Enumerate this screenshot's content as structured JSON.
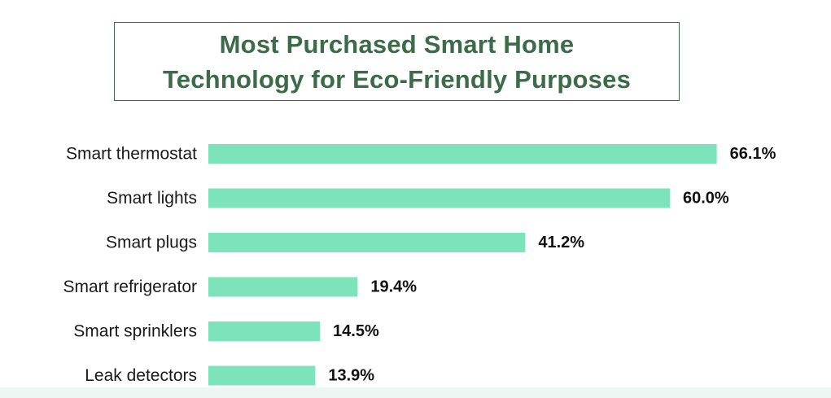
{
  "colors": {
    "bar": "#7de3bb",
    "title": "#3b6b47",
    "title_border": "#3f6b4c",
    "label": "#1a1a1a",
    "value": "#111111"
  },
  "chart_data": {
    "type": "bar",
    "orientation": "horizontal",
    "title_lines": [
      "Most Purchased Smart Home",
      "Technology for Eco-Friendly Purposes"
    ],
    "categories": [
      "Smart thermostat",
      "Smart lights",
      "Smart plugs",
      "Smart refrigerator",
      "Smart sprinklers",
      "Leak detectors"
    ],
    "values": [
      66.1,
      60.0,
      41.2,
      19.4,
      14.5,
      13.9
    ],
    "value_labels": [
      "66.1%",
      "60.0%",
      "41.2%",
      "19.4%",
      "14.5%",
      "13.9%"
    ],
    "unit": "%",
    "xlim": [
      0,
      100
    ],
    "grid": false,
    "legend": "none"
  }
}
